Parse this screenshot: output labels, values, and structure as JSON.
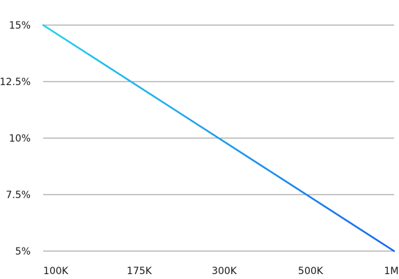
{
  "chart_data": {
    "type": "line",
    "title": "",
    "xlabel": "",
    "ylabel": "",
    "x_categories": [
      "100K",
      "175K",
      "300K",
      "500K",
      "1M"
    ],
    "y_ticks": [
      "15%",
      "12.5%",
      "10%",
      "7.5%",
      "5%"
    ],
    "y_tick_values": [
      15,
      12.5,
      10,
      7.5,
      5
    ],
    "ylim": [
      5,
      15
    ],
    "grid": true,
    "series": [
      {
        "x": [
          "100K",
          "1M"
        ],
        "values": [
          15,
          5
        ]
      }
    ],
    "colors": {
      "line_start": "#1fd0f0",
      "line_end": "#1566f0",
      "grid": "#8c8c8c",
      "text": "#1a1a1a"
    }
  }
}
